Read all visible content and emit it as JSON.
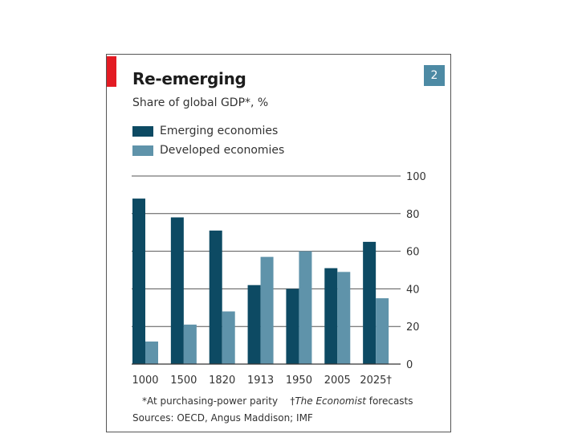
{
  "figure": {
    "badge": "2",
    "footnote_ppp": "*At purchasing-power parity",
    "footnote_dagger": "†",
    "footnote_forecast_italic": "The Economist",
    "footnote_forecast_rest": " forecasts",
    "sources": "Sources: OECD, Angus Maddison; IMF"
  },
  "colors": {
    "emerging": "#0d4a63",
    "developed": "#5f93aa",
    "accent_red": "#e31b23",
    "badge": "#4d8aa4"
  },
  "chart_data": {
    "type": "bar",
    "title": "Re-emerging",
    "subtitle": "Share of global GDP*, %",
    "categories": [
      "1000",
      "1500",
      "1820",
      "1913",
      "1950",
      "2005",
      "2025†"
    ],
    "series": [
      {
        "name": "Emerging economies",
        "values": [
          88,
          78,
          71,
          42,
          40,
          51,
          65
        ]
      },
      {
        "name": "Developed economies",
        "values": [
          12,
          21,
          28,
          57,
          60,
          49,
          35
        ]
      }
    ],
    "ylim": [
      0,
      100
    ],
    "yticks": [
      "0",
      "20",
      "40",
      "60",
      "80",
      "100"
    ],
    "xlabel": "",
    "ylabel": "",
    "grid": true,
    "legend": "top-left"
  }
}
